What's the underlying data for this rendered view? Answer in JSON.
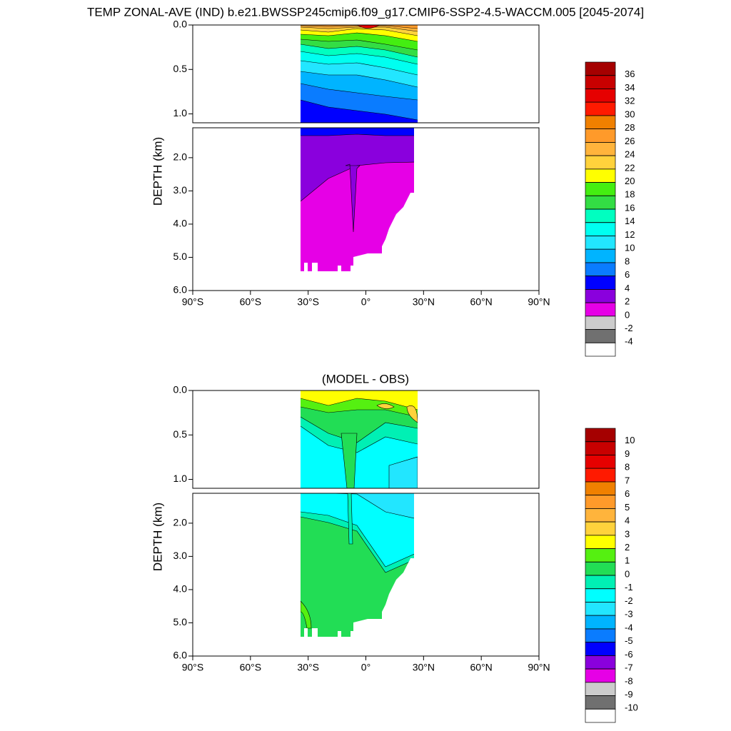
{
  "title": "TEMP ZONAL-AVE (IND) b.e21.BWSSP245cmip6.f09_g17.CMIP6-SSP2-4.5-WACCM.005 [2045-2074]",
  "chart_data": [
    {
      "type": "contour",
      "ylabel": "DEPTH (km)",
      "xlim": [
        -90,
        90
      ],
      "xticks": [
        {
          "value": -90,
          "label": "90°S"
        },
        {
          "value": -60,
          "label": "60°S"
        },
        {
          "value": -30,
          "label": "30°S"
        },
        {
          "value": 0,
          "label": "0°"
        },
        {
          "value": 30,
          "label": "30°N"
        },
        {
          "value": 60,
          "label": "60°N"
        },
        {
          "value": 90,
          "label": "90°N"
        }
      ],
      "ylim": [
        0,
        1.1
      ],
      "yticks": [
        {
          "value": 0,
          "label": "0.0"
        },
        {
          "value": 0.5,
          "label": "0.5"
        },
        {
          "value": 1,
          "label": "1.0"
        }
      ],
      "ylim_lower": [
        1.1,
        6
      ],
      "yticks_lower": [
        {
          "value": 2,
          "label": "2.0"
        },
        {
          "value": 3,
          "label": "3.0"
        },
        {
          "value": 4,
          "label": "4.0"
        },
        {
          "value": 5,
          "label": "5.0"
        },
        {
          "value": 6,
          "label": "6.0"
        }
      ],
      "levels": [
        36,
        34,
        32,
        30,
        28,
        26,
        24,
        22,
        20,
        18,
        16,
        14,
        12,
        10,
        8,
        6,
        4,
        2,
        0,
        -2,
        -4
      ],
      "colors": [
        "#a50000",
        "#c80000",
        "#e60000",
        "#ff1a00",
        "#f08000",
        "#ff9a2a",
        "#ffb43c",
        "#ffd23c",
        "#ffff00",
        "#44ee11",
        "#33dd44",
        "#00ffc0",
        "#00fff0",
        "#22e6ff",
        "#00b4ff",
        "#0a7cff",
        "#0000ff",
        "#8a00dd",
        "#e600e6",
        "#cccccc",
        "#707070",
        "#ffffff"
      ]
    },
    {
      "type": "contour",
      "subtitle": "(MODEL - OBS)",
      "ylabel": "DEPTH (km)",
      "xlim": [
        -90,
        90
      ],
      "xticks": [
        {
          "value": -90,
          "label": "90°S"
        },
        {
          "value": -60,
          "label": "60°S"
        },
        {
          "value": -30,
          "label": "30°S"
        },
        {
          "value": 0,
          "label": "0°"
        },
        {
          "value": 30,
          "label": "30°N"
        },
        {
          "value": 60,
          "label": "60°N"
        },
        {
          "value": 90,
          "label": "90°N"
        }
      ],
      "ylim": [
        0,
        1.1
      ],
      "yticks": [
        {
          "value": 0,
          "label": "0.0"
        },
        {
          "value": 0.5,
          "label": "0.5"
        },
        {
          "value": 1,
          "label": "1.0"
        }
      ],
      "ylim_lower": [
        1.1,
        6
      ],
      "yticks_lower": [
        {
          "value": 2,
          "label": "2.0"
        },
        {
          "value": 3,
          "label": "3.0"
        },
        {
          "value": 4,
          "label": "4.0"
        },
        {
          "value": 5,
          "label": "5.0"
        },
        {
          "value": 6,
          "label": "6.0"
        }
      ],
      "levels": [
        10,
        9,
        8,
        7,
        6,
        5,
        4,
        3,
        2,
        1,
        0,
        -1,
        -2,
        -3,
        -4,
        -5,
        -6,
        -7,
        -8,
        -9,
        -10
      ],
      "colors": [
        "#a50000",
        "#c80000",
        "#e60000",
        "#ff1a00",
        "#f08000",
        "#ff9a2a",
        "#ffb43c",
        "#ffd23c",
        "#ffff00",
        "#55f011",
        "#22dd55",
        "#00f0b4",
        "#00ffff",
        "#22e6ff",
        "#00b4ff",
        "#0a7cff",
        "#0000ff",
        "#8a00dd",
        "#e600e6",
        "#cccccc",
        "#707070",
        "#ffffff"
      ]
    }
  ]
}
